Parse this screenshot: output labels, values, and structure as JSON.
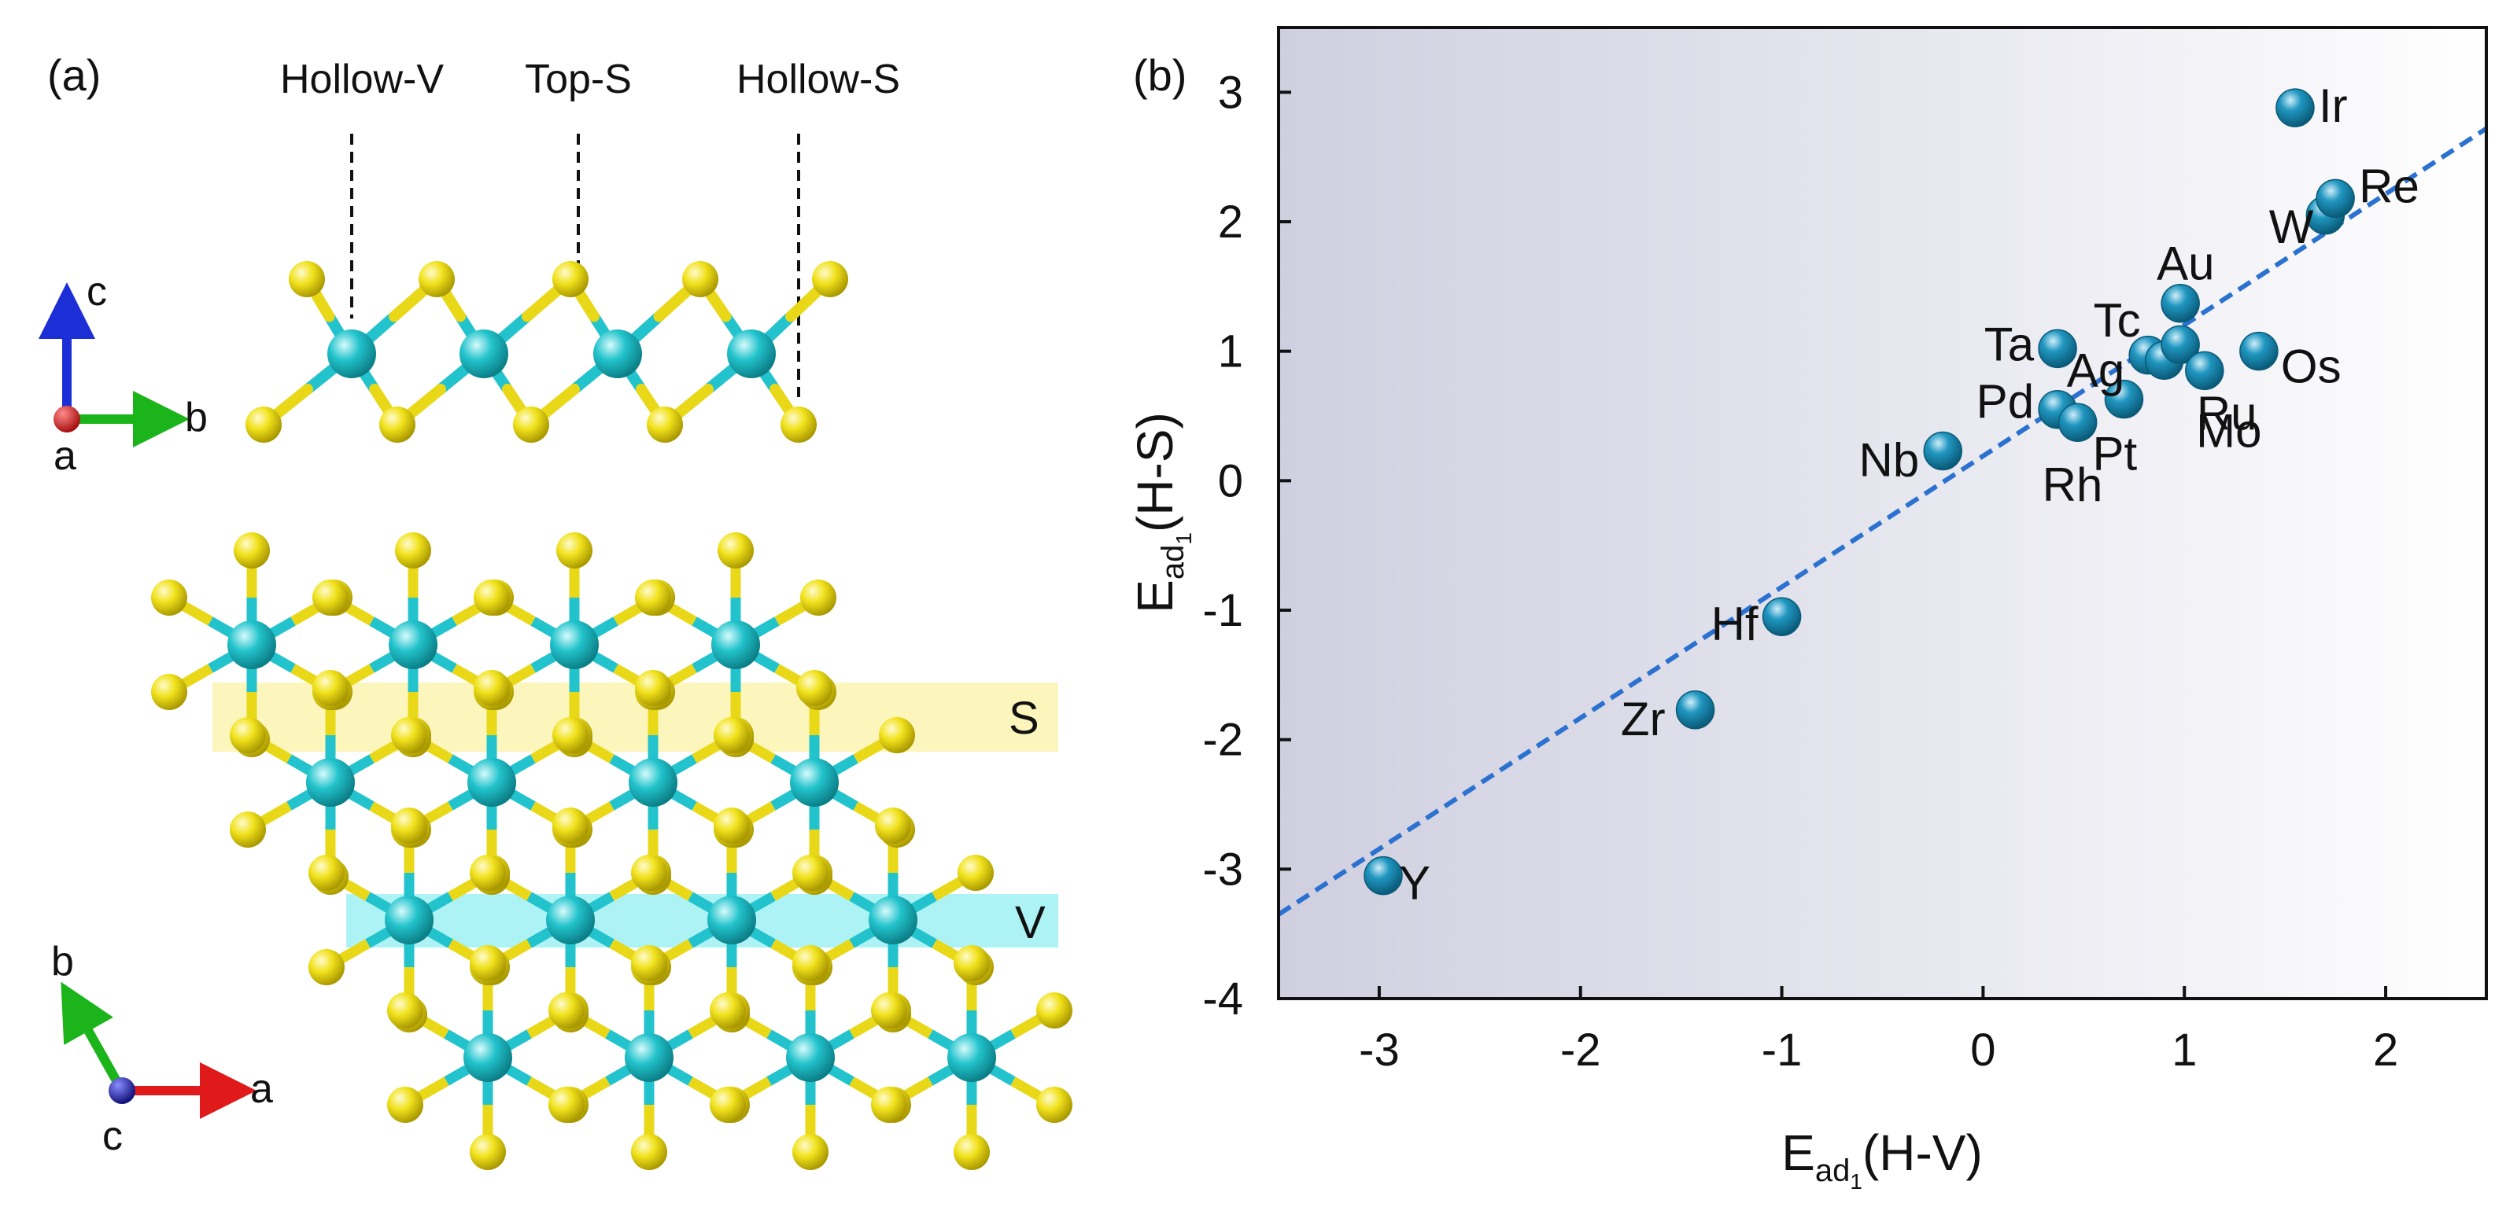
{
  "panel_a": {
    "label": "(a)",
    "site_labels": [
      "Hollow-V",
      "Top-S",
      "Hollow-S"
    ],
    "axes_side": {
      "c": "c",
      "b": "b",
      "a": "a"
    },
    "axes_top": {
      "b": "b",
      "a": "a",
      "c": "c"
    },
    "band_s": "S",
    "band_v": "V",
    "colors": {
      "S_atom": "#f0e21a",
      "V_atom": "#22c3cc",
      "axis_a": "#e01a1a",
      "axis_b": "#1bb51b",
      "axis_c": "#1c2fd6",
      "band_s": "#fbf4b0",
      "band_v": "#9ff1f5"
    }
  },
  "panel_b": {
    "label": "(b)"
  },
  "chart_data": {
    "type": "scatter",
    "xlabel": "E_ad1(H-V)",
    "ylabel": "E_ad1(H-S)",
    "xlabel_parts": [
      "E",
      "ad",
      "1",
      "(H-V)"
    ],
    "ylabel_parts": [
      "E",
      "ad",
      "1",
      "(H-S)"
    ],
    "xlim": [
      -3.5,
      2.5
    ],
    "ylim": [
      -4,
      3.5
    ],
    "xticks": [
      -3,
      -2,
      -1,
      0,
      1,
      2
    ],
    "yticks": [
      -4,
      -3,
      -2,
      -1,
      0,
      1,
      2,
      3
    ],
    "grid": false,
    "marker_color": "#1a8fb5",
    "fit_line": {
      "style": "dashed",
      "color": "#2b72d0",
      "x": [
        -3.5,
        2.5
      ],
      "y": [
        -3.35,
        2.72
      ]
    },
    "points": [
      {
        "label": "Y",
        "x": -2.98,
        "y": -3.05
      },
      {
        "label": "Zr",
        "x": -1.43,
        "y": -1.77
      },
      {
        "label": "Hf",
        "x": -1.0,
        "y": -1.05
      },
      {
        "label": "Nb",
        "x": -0.2,
        "y": 0.23
      },
      {
        "label": "Pd",
        "x": 0.37,
        "y": 0.55
      },
      {
        "label": "Rh",
        "x": 0.47,
        "y": 0.45
      },
      {
        "label": "Ta",
        "x": 0.37,
        "y": 1.02
      },
      {
        "label": "Pt",
        "x": 0.7,
        "y": 0.63
      },
      {
        "label": "Ag",
        "x": 0.82,
        "y": 0.97
      },
      {
        "label": "Tc",
        "x": 0.9,
        "y": 0.93
      },
      {
        "label": "Mo",
        "x": 0.98,
        "y": 1.05
      },
      {
        "label": "Au",
        "x": 0.98,
        "y": 1.37
      },
      {
        "label": "Ru",
        "x": 1.1,
        "y": 0.85
      },
      {
        "label": "Os",
        "x": 1.37,
        "y": 1.0
      },
      {
        "label": "W",
        "x": 1.7,
        "y": 2.05
      },
      {
        "label": "Re",
        "x": 1.75,
        "y": 2.18
      },
      {
        "label": "Ir",
        "x": 1.55,
        "y": 2.88
      }
    ]
  }
}
